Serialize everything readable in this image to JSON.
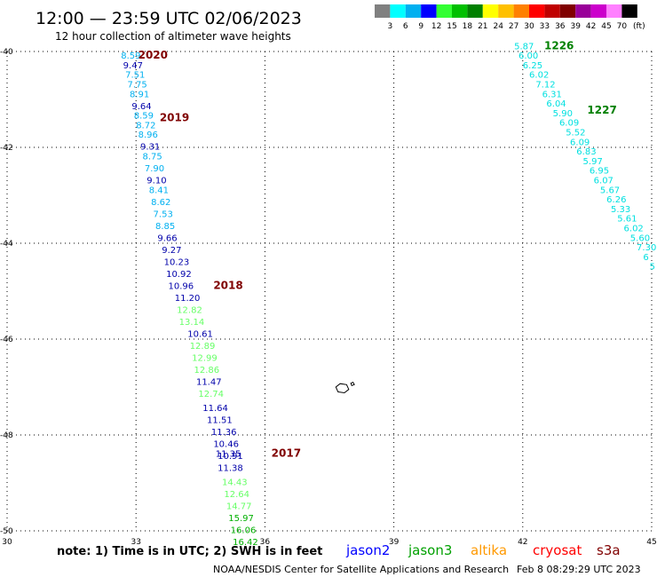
{
  "header": {
    "title": "12:00 — 23:59 UTC 02/06/2023",
    "subtitle": "12 hour collection of altimeter wave heights"
  },
  "colorbar": {
    "colors": [
      "#808080",
      "#00ffff",
      "#00b0f0",
      "#0000ff",
      "#33ff33",
      "#00c000",
      "#008000",
      "#ffff00",
      "#ffc000",
      "#ff8000",
      "#ff0000",
      "#c00000",
      "#800000",
      "#990099",
      "#cc00cc",
      "#ff80ff",
      "#000000"
    ],
    "labels": [
      "3",
      "6",
      "9",
      "12",
      "15",
      "18",
      "21",
      "24",
      "27",
      "30",
      "33",
      "36",
      "39",
      "42",
      "45",
      "70"
    ],
    "unit": "(ft)"
  },
  "map": {
    "lon_range": [
      30,
      45
    ],
    "lat_range": [
      -50,
      -40
    ],
    "lon_ticks": [
      30,
      33,
      36,
      39,
      42,
      45
    ],
    "lat_ticks": [
      -40,
      -42,
      -44,
      -46,
      -48,
      -50
    ],
    "grid_style": "dotted",
    "land_polygon": [
      [
        37.65,
        -47.0
      ],
      [
        37.75,
        -46.93
      ],
      [
        37.9,
        -46.95
      ],
      [
        37.95,
        -47.05
      ],
      [
        37.85,
        -47.12
      ],
      [
        37.7,
        -47.1
      ]
    ],
    "land_polygon2": [
      [
        38.0,
        -46.92
      ],
      [
        38.05,
        -46.9
      ],
      [
        38.08,
        -46.95
      ],
      [
        38.02,
        -46.97
      ]
    ]
  },
  "tracks": [
    {
      "label": "2020",
      "label_pos": [
        33.05,
        -40.15
      ],
      "label_color": "#800000",
      "points": [
        {
          "lon": 32.65,
          "lat": -40.15,
          "v": "8.59",
          "c": "#00b0f0"
        },
        {
          "lon": 32.7,
          "lat": -40.35,
          "v": "9.47",
          "c": "#0000aa"
        },
        {
          "lon": 32.75,
          "lat": -40.55,
          "v": "7.51",
          "c": "#00b0f0"
        },
        {
          "lon": 32.8,
          "lat": -40.75,
          "v": "7.75",
          "c": "#00b0f0"
        },
        {
          "lon": 32.85,
          "lat": -40.95,
          "v": "8.91",
          "c": "#00b0f0"
        },
        {
          "lon": 32.9,
          "lat": -41.2,
          "v": "9.64",
          "c": "#0000aa"
        }
      ]
    },
    {
      "label": "2019",
      "label_pos": [
        33.55,
        -41.45
      ],
      "label_color": "#800000",
      "points": [
        {
          "lon": 32.95,
          "lat": -41.4,
          "v": "8.59",
          "c": "#00b0f0"
        },
        {
          "lon": 33.0,
          "lat": -41.6,
          "v": "8.72",
          "c": "#00b0f0"
        },
        {
          "lon": 33.05,
          "lat": -41.8,
          "v": "8.96",
          "c": "#00b0f0"
        },
        {
          "lon": 33.1,
          "lat": -42.05,
          "v": "9.31",
          "c": "#0000aa"
        },
        {
          "lon": 33.15,
          "lat": -42.25,
          "v": "8.75",
          "c": "#00b0f0"
        },
        {
          "lon": 33.2,
          "lat": -42.5,
          "v": "7.90",
          "c": "#00b0f0"
        },
        {
          "lon": 33.25,
          "lat": -42.75,
          "v": "9.10",
          "c": "#0000aa"
        },
        {
          "lon": 33.3,
          "lat": -42.95,
          "v": "8.41",
          "c": "#00b0f0"
        },
        {
          "lon": 33.35,
          "lat": -43.2,
          "v": "8.62",
          "c": "#00b0f0"
        },
        {
          "lon": 33.4,
          "lat": -43.45,
          "v": "7.53",
          "c": "#00b0f0"
        },
        {
          "lon": 33.45,
          "lat": -43.7,
          "v": "8.85",
          "c": "#00b0f0"
        }
      ]
    },
    {
      "label": "2018",
      "label_pos": [
        34.8,
        -44.95
      ],
      "label_color": "#800000",
      "points": [
        {
          "lon": 33.5,
          "lat": -43.95,
          "v": "9.66",
          "c": "#0000aa"
        },
        {
          "lon": 33.6,
          "lat": -44.2,
          "v": "9.27",
          "c": "#0000aa"
        },
        {
          "lon": 33.65,
          "lat": -44.45,
          "v": "10.23",
          "c": "#0000aa"
        },
        {
          "lon": 33.7,
          "lat": -44.7,
          "v": "10.92",
          "c": "#0000aa"
        },
        {
          "lon": 33.75,
          "lat": -44.95,
          "v": "10.96",
          "c": "#0000aa"
        },
        {
          "lon": 33.9,
          "lat": -45.2,
          "v": "11.20",
          "c": "#0000aa"
        },
        {
          "lon": 33.95,
          "lat": -45.45,
          "v": "12.82",
          "c": "#66ff66"
        },
        {
          "lon": 34.0,
          "lat": -45.7,
          "v": "13.14",
          "c": "#66ff66"
        },
        {
          "lon": 34.2,
          "lat": -45.95,
          "v": "10.61",
          "c": "#0000aa"
        },
        {
          "lon": 34.25,
          "lat": -46.2,
          "v": "12.89",
          "c": "#66ff66"
        },
        {
          "lon": 34.3,
          "lat": -46.45,
          "v": "12.99",
          "c": "#66ff66"
        },
        {
          "lon": 34.35,
          "lat": -46.7,
          "v": "12.86",
          "c": "#66ff66"
        },
        {
          "lon": 34.4,
          "lat": -46.95,
          "v": "11.47",
          "c": "#0000aa"
        },
        {
          "lon": 34.45,
          "lat": -47.2,
          "v": "12.74",
          "c": "#66ff66"
        },
        {
          "lon": 34.55,
          "lat": -47.5,
          "v": "11.64",
          "c": "#0000aa"
        },
        {
          "lon": 34.65,
          "lat": -47.75,
          "v": "11.51",
          "c": "#0000aa"
        },
        {
          "lon": 34.75,
          "lat": -48.0,
          "v": "11.36",
          "c": "#0000aa"
        },
        {
          "lon": 34.8,
          "lat": -48.25,
          "v": "10.46",
          "c": "#0000aa"
        }
      ]
    },
    {
      "label": "2017",
      "label_pos": [
        36.15,
        -48.45
      ],
      "label_color": "#800000",
      "points": [
        {
          "lon": 34.85,
          "lat": -48.45,
          "v": "11.35",
          "c": "#0000aa"
        },
        {
          "lon": 34.9,
          "lat": -48.5,
          "v": "10.91",
          "c": "#0000aa"
        },
        {
          "lon": 34.9,
          "lat": -48.75,
          "v": "11.38",
          "c": "#0000aa"
        },
        {
          "lon": 35.0,
          "lat": -49.05,
          "v": "14.43",
          "c": "#66ff66"
        },
        {
          "lon": 35.05,
          "lat": -49.3,
          "v": "12.64",
          "c": "#66ff66"
        },
        {
          "lon": 35.1,
          "lat": -49.55,
          "v": "14.77",
          "c": "#66ff66"
        },
        {
          "lon": 35.15,
          "lat": -49.8,
          "v": "15.97",
          "c": "#00b000"
        },
        {
          "lon": 35.2,
          "lat": -50.05,
          "v": "16.06",
          "c": "#00b000"
        },
        {
          "lon": 35.25,
          "lat": -50.3,
          "v": "16.42",
          "c": "#00b000"
        }
      ]
    },
    {
      "label": "1226",
      "label_pos": [
        42.5,
        -39.95
      ],
      "label_color": "#008000",
      "points": [
        {
          "lon": 41.8,
          "lat": -39.95,
          "v": "5.87",
          "c": "#00e0e0"
        },
        {
          "lon": 41.9,
          "lat": -40.15,
          "v": "6.00",
          "c": "#00e0e0"
        },
        {
          "lon": 42.0,
          "lat": -40.35,
          "v": "6.25",
          "c": "#00e0e0"
        },
        {
          "lon": 42.15,
          "lat": -40.55,
          "v": "6.02",
          "c": "#00e0e0"
        },
        {
          "lon": 42.3,
          "lat": -40.75,
          "v": "7.12",
          "c": "#00e0e0"
        },
        {
          "lon": 42.45,
          "lat": -40.95,
          "v": "6.31",
          "c": "#00e0e0"
        },
        {
          "lon": 42.55,
          "lat": -41.15,
          "v": "6.04",
          "c": "#00e0e0"
        },
        {
          "lon": 42.7,
          "lat": -41.35,
          "v": "5.90",
          "c": "#00e0e0"
        }
      ]
    },
    {
      "label": "1227",
      "label_pos": [
        43.5,
        -41.3
      ],
      "label_color": "#008000",
      "points": [
        {
          "lon": 42.85,
          "lat": -41.55,
          "v": "6.09",
          "c": "#00e0e0"
        },
        {
          "lon": 43.0,
          "lat": -41.75,
          "v": "5.52",
          "c": "#00e0e0"
        },
        {
          "lon": 43.1,
          "lat": -41.95,
          "v": "6.09",
          "c": "#00e0e0"
        },
        {
          "lon": 43.25,
          "lat": -42.15,
          "v": "6.83",
          "c": "#00e0e0"
        },
        {
          "lon": 43.4,
          "lat": -42.35,
          "v": "5.97",
          "c": "#00e0e0"
        },
        {
          "lon": 43.55,
          "lat": -42.55,
          "v": "6.95",
          "c": "#00e0e0"
        },
        {
          "lon": 43.65,
          "lat": -42.75,
          "v": "6.07",
          "c": "#00e0e0"
        },
        {
          "lon": 43.8,
          "lat": -42.95,
          "v": "5.67",
          "c": "#00e0e0"
        },
        {
          "lon": 43.95,
          "lat": -43.15,
          "v": "6.26",
          "c": "#00e0e0"
        },
        {
          "lon": 44.05,
          "lat": -43.35,
          "v": "5.33",
          "c": "#00e0e0"
        },
        {
          "lon": 44.2,
          "lat": -43.55,
          "v": "5.61",
          "c": "#00e0e0"
        },
        {
          "lon": 44.35,
          "lat": -43.75,
          "v": "6.02",
          "c": "#00e0e0"
        },
        {
          "lon": 44.5,
          "lat": -43.95,
          "v": "5.60",
          "c": "#00e0e0"
        },
        {
          "lon": 44.65,
          "lat": -44.15,
          "v": "7.30",
          "c": "#00e0e0"
        },
        {
          "lon": 44.8,
          "lat": -44.35,
          "v": "6",
          "c": "#00e0e0"
        },
        {
          "lon": 44.95,
          "lat": -44.55,
          "v": "5",
          "c": "#00e0e0"
        }
      ]
    }
  ],
  "footer": {
    "note": "note: 1) Time is in UTC; 2) SWH is in feet",
    "missions": [
      {
        "name": "jason2",
        "color": "#0000ff"
      },
      {
        "name": "jason3",
        "color": "#00a000"
      },
      {
        "name": "altika",
        "color": "#ff9900"
      },
      {
        "name": "cryosat",
        "color": "#ff0000"
      },
      {
        "name": "s3a",
        "color": "#800000"
      }
    ],
    "credit": "NOAA/NESDIS Center for Satellite Applications and Research",
    "timestamp": "Feb  8 08:29:29 UTC 2023"
  }
}
